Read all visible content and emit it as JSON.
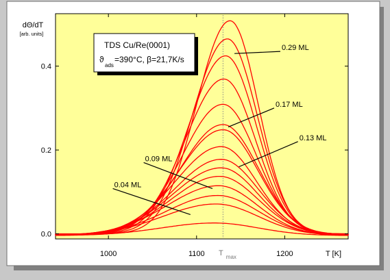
{
  "chart_data": {
    "type": "line",
    "ylabel": "dΘ/dT",
    "ylabel_unit": "[arb. units]",
    "xlabel": "T [K]",
    "marker_label": "T",
    "marker_sub": "max",
    "marker_x": 1130,
    "xlim": [
      940,
      1272
    ],
    "ylim": [
      -0.012,
      0.525
    ],
    "xticks": [
      1000,
      1100,
      1200
    ],
    "yticks": [
      0.0,
      0.2,
      0.4
    ],
    "ytick_labels": [
      "0.0",
      "0.2",
      "0.4"
    ],
    "plot_background": "#ffff99",
    "line_color": "#ff0000",
    "title_box": {
      "line1": "TDS Cu/Re(0001)",
      "line2_symbol": "ϑ",
      "line2_sub": "ads",
      "line2_rest": "=390°C, β=21,7K/s"
    },
    "annotations": [
      {
        "text": "0.29 ML",
        "target": [
          1143,
          0.43
        ],
        "label_at": [
          1195,
          0.435
        ]
      },
      {
        "text": "0.17 ML",
        "target": [
          1136,
          0.255
        ],
        "label_at": [
          1188,
          0.3
        ]
      },
      {
        "text": "0.13 ML",
        "target": [
          1148,
          0.16
        ],
        "label_at": [
          1215,
          0.22
        ]
      },
      {
        "text": "0.09 ML",
        "target": [
          1118,
          0.108
        ],
        "label_at": [
          1040,
          0.17
        ]
      },
      {
        "text": "0.04 ML",
        "target": [
          1093,
          0.046
        ],
        "label_at": [
          1005,
          0.108
        ]
      }
    ],
    "series": [
      {
        "peak_x": 1120,
        "peak_y": 0.03,
        "sigma_left": 60,
        "sigma_right": 50
      },
      {
        "peak_x": 1122,
        "peak_y": 0.075,
        "sigma_left": 60,
        "sigma_right": 48
      },
      {
        "peak_x": 1124,
        "peak_y": 0.095,
        "sigma_left": 58,
        "sigma_right": 46
      },
      {
        "peak_x": 1125,
        "peak_y": 0.118,
        "sigma_left": 58,
        "sigma_right": 44
      },
      {
        "peak_x": 1126,
        "peak_y": 0.14,
        "sigma_left": 55,
        "sigma_right": 44
      },
      {
        "peak_x": 1128,
        "peak_y": 0.16,
        "sigma_left": 55,
        "sigma_right": 42
      },
      {
        "peak_x": 1128,
        "peak_y": 0.18,
        "sigma_left": 53,
        "sigma_right": 42
      },
      {
        "peak_x": 1128,
        "peak_y": 0.21,
        "sigma_left": 52,
        "sigma_right": 40
      },
      {
        "peak_x": 1130,
        "peak_y": 0.25,
        "sigma_left": 50,
        "sigma_right": 40
      },
      {
        "peak_x": 1130,
        "peak_y": 0.262,
        "sigma_left": 48,
        "sigma_right": 40
      },
      {
        "peak_x": 1130,
        "peak_y": 0.31,
        "sigma_left": 46,
        "sigma_right": 38
      },
      {
        "peak_x": 1131,
        "peak_y": 0.37,
        "sigma_left": 44,
        "sigma_right": 36
      },
      {
        "peak_x": 1133,
        "peak_y": 0.425,
        "sigma_left": 42,
        "sigma_right": 35
      },
      {
        "peak_x": 1135,
        "peak_y": 0.465,
        "sigma_left": 40,
        "sigma_right": 34
      },
      {
        "peak_x": 1138,
        "peak_y": 0.508,
        "sigma_left": 38,
        "sigma_right": 32
      }
    ]
  }
}
